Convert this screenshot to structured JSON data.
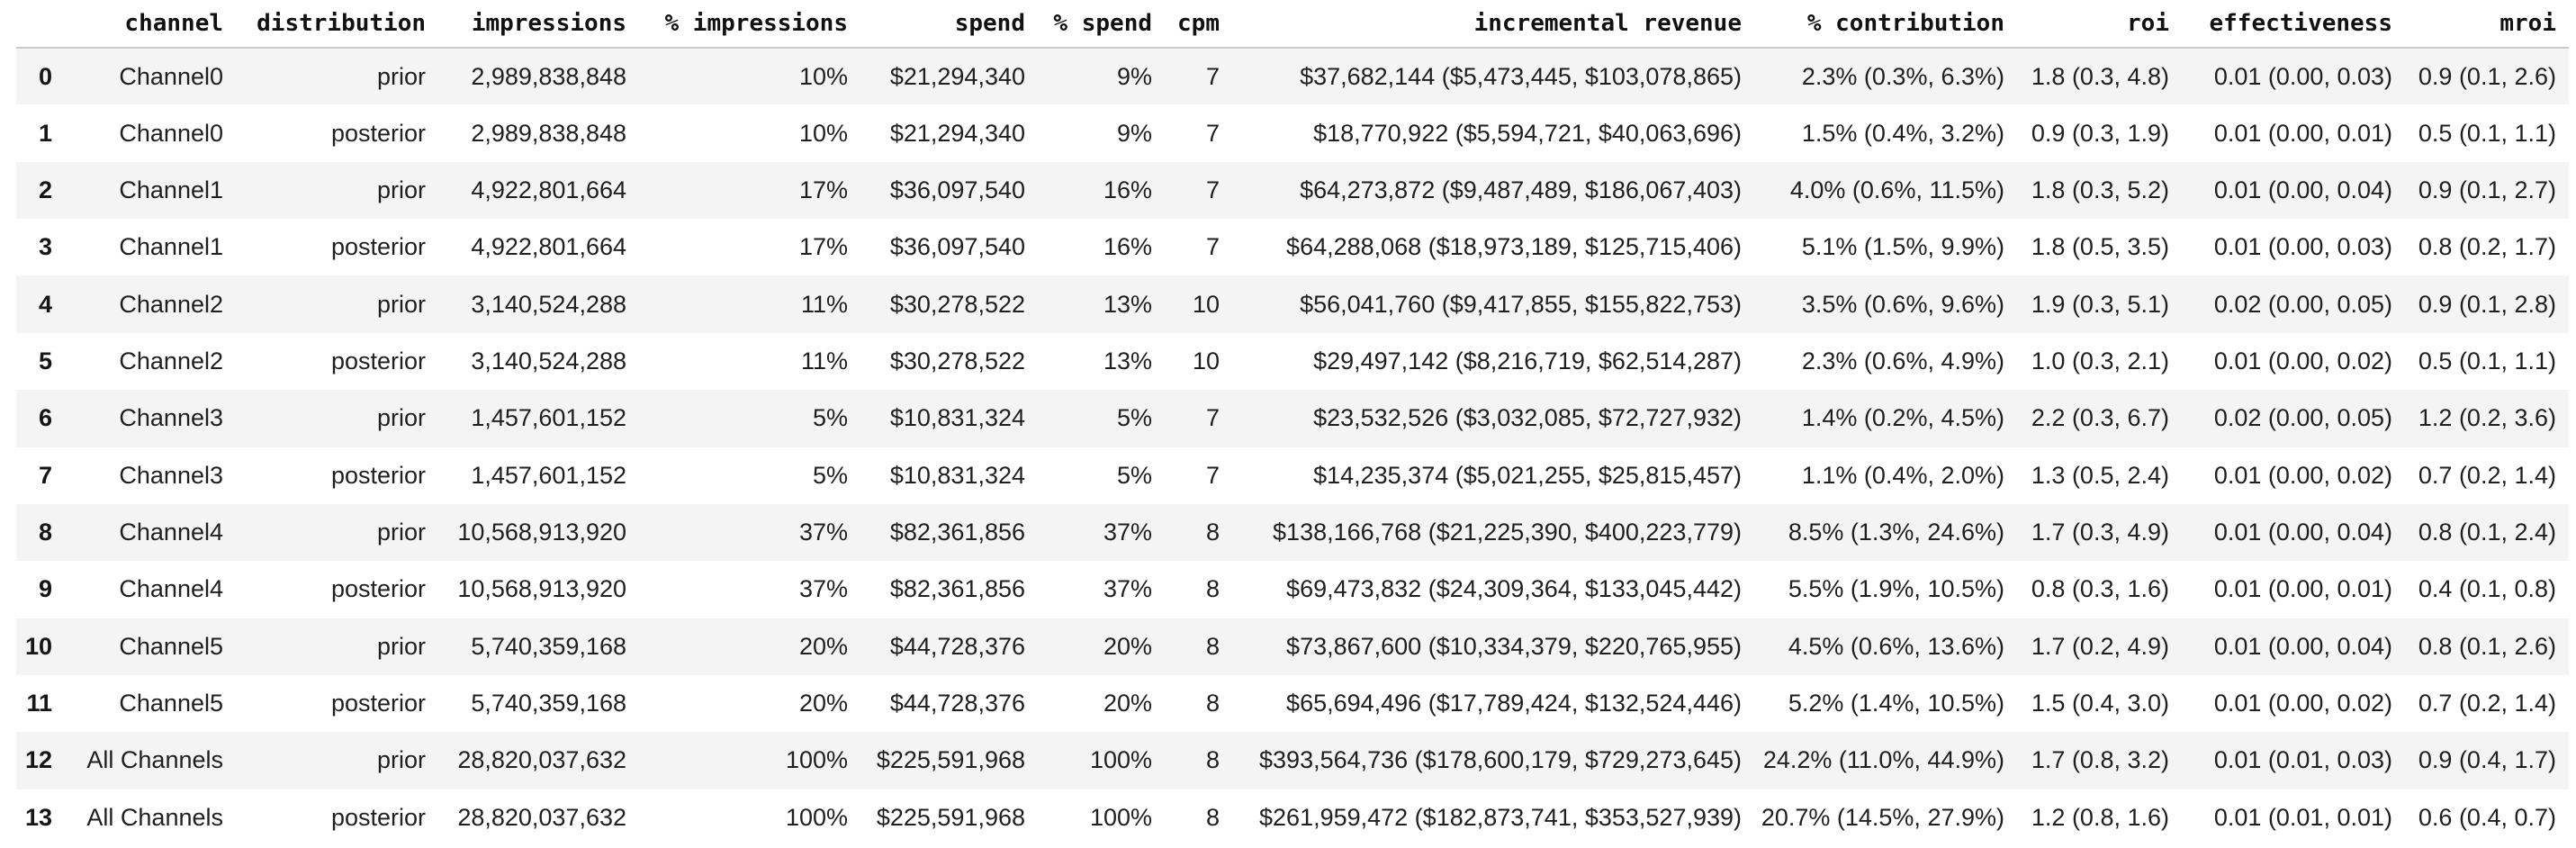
{
  "colors": {
    "background": "#ffffff",
    "row_stripe": "#f4f4f4",
    "header_rule": "#c9c9c9",
    "text": "#1f1f1f"
  },
  "table": {
    "index_header": "",
    "columns": [
      "channel",
      "distribution",
      "impressions",
      "% impressions",
      "spend",
      "% spend",
      "cpm",
      "incremental revenue",
      "% contribution",
      "roi",
      "effectiveness",
      "mroi"
    ],
    "rows": [
      {
        "index": "0",
        "cells": [
          "Channel0",
          "prior",
          "2,989,838,848",
          "10%",
          "$21,294,340",
          "9%",
          "7",
          "$37,682,144 ($5,473,445, $103,078,865)",
          "2.3% (0.3%, 6.3%)",
          "1.8 (0.3, 4.8)",
          "0.01 (0.00, 0.03)",
          "0.9 (0.1, 2.6)"
        ]
      },
      {
        "index": "1",
        "cells": [
          "Channel0",
          "posterior",
          "2,989,838,848",
          "10%",
          "$21,294,340",
          "9%",
          "7",
          "$18,770,922 ($5,594,721, $40,063,696)",
          "1.5% (0.4%, 3.2%)",
          "0.9 (0.3, 1.9)",
          "0.01 (0.00, 0.01)",
          "0.5 (0.1, 1.1)"
        ]
      },
      {
        "index": "2",
        "cells": [
          "Channel1",
          "prior",
          "4,922,801,664",
          "17%",
          "$36,097,540",
          "16%",
          "7",
          "$64,273,872 ($9,487,489, $186,067,403)",
          "4.0% (0.6%, 11.5%)",
          "1.8 (0.3, 5.2)",
          "0.01 (0.00, 0.04)",
          "0.9 (0.1, 2.7)"
        ]
      },
      {
        "index": "3",
        "cells": [
          "Channel1",
          "posterior",
          "4,922,801,664",
          "17%",
          "$36,097,540",
          "16%",
          "7",
          "$64,288,068 ($18,973,189, $125,715,406)",
          "5.1% (1.5%, 9.9%)",
          "1.8 (0.5, 3.5)",
          "0.01 (0.00, 0.03)",
          "0.8 (0.2, 1.7)"
        ]
      },
      {
        "index": "4",
        "cells": [
          "Channel2",
          "prior",
          "3,140,524,288",
          "11%",
          "$30,278,522",
          "13%",
          "10",
          "$56,041,760 ($9,417,855, $155,822,753)",
          "3.5% (0.6%, 9.6%)",
          "1.9 (0.3, 5.1)",
          "0.02 (0.00, 0.05)",
          "0.9 (0.1, 2.8)"
        ]
      },
      {
        "index": "5",
        "cells": [
          "Channel2",
          "posterior",
          "3,140,524,288",
          "11%",
          "$30,278,522",
          "13%",
          "10",
          "$29,497,142 ($8,216,719, $62,514,287)",
          "2.3% (0.6%, 4.9%)",
          "1.0 (0.3, 2.1)",
          "0.01 (0.00, 0.02)",
          "0.5 (0.1, 1.1)"
        ]
      },
      {
        "index": "6",
        "cells": [
          "Channel3",
          "prior",
          "1,457,601,152",
          "5%",
          "$10,831,324",
          "5%",
          "7",
          "$23,532,526 ($3,032,085, $72,727,932)",
          "1.4% (0.2%, 4.5%)",
          "2.2 (0.3, 6.7)",
          "0.02 (0.00, 0.05)",
          "1.2 (0.2, 3.6)"
        ]
      },
      {
        "index": "7",
        "cells": [
          "Channel3",
          "posterior",
          "1,457,601,152",
          "5%",
          "$10,831,324",
          "5%",
          "7",
          "$14,235,374 ($5,021,255, $25,815,457)",
          "1.1% (0.4%, 2.0%)",
          "1.3 (0.5, 2.4)",
          "0.01 (0.00, 0.02)",
          "0.7 (0.2, 1.4)"
        ]
      },
      {
        "index": "8",
        "cells": [
          "Channel4",
          "prior",
          "10,568,913,920",
          "37%",
          "$82,361,856",
          "37%",
          "8",
          "$138,166,768 ($21,225,390, $400,223,779)",
          "8.5% (1.3%, 24.6%)",
          "1.7 (0.3, 4.9)",
          "0.01 (0.00, 0.04)",
          "0.8 (0.1, 2.4)"
        ]
      },
      {
        "index": "9",
        "cells": [
          "Channel4",
          "posterior",
          "10,568,913,920",
          "37%",
          "$82,361,856",
          "37%",
          "8",
          "$69,473,832 ($24,309,364, $133,045,442)",
          "5.5% (1.9%, 10.5%)",
          "0.8 (0.3, 1.6)",
          "0.01 (0.00, 0.01)",
          "0.4 (0.1, 0.8)"
        ]
      },
      {
        "index": "10",
        "cells": [
          "Channel5",
          "prior",
          "5,740,359,168",
          "20%",
          "$44,728,376",
          "20%",
          "8",
          "$73,867,600 ($10,334,379, $220,765,955)",
          "4.5% (0.6%, 13.6%)",
          "1.7 (0.2, 4.9)",
          "0.01 (0.00, 0.04)",
          "0.8 (0.1, 2.6)"
        ]
      },
      {
        "index": "11",
        "cells": [
          "Channel5",
          "posterior",
          "5,740,359,168",
          "20%",
          "$44,728,376",
          "20%",
          "8",
          "$65,694,496 ($17,789,424, $132,524,446)",
          "5.2% (1.4%, 10.5%)",
          "1.5 (0.4, 3.0)",
          "0.01 (0.00, 0.02)",
          "0.7 (0.2, 1.4)"
        ]
      },
      {
        "index": "12",
        "cells": [
          "All Channels",
          "prior",
          "28,820,037,632",
          "100%",
          "$225,591,968",
          "100%",
          "8",
          "$393,564,736 ($178,600,179, $729,273,645)",
          "24.2% (11.0%, 44.9%)",
          "1.7 (0.8, 3.2)",
          "0.01 (0.01, 0.03)",
          "0.9 (0.4, 1.7)"
        ]
      },
      {
        "index": "13",
        "cells": [
          "All Channels",
          "posterior",
          "28,820,037,632",
          "100%",
          "$225,591,968",
          "100%",
          "8",
          "$261,959,472 ($182,873,741, $353,527,939)",
          "20.7% (14.5%, 27.9%)",
          "1.2 (0.8, 1.6)",
          "0.01 (0.01, 0.01)",
          "0.6 (0.4, 0.7)"
        ]
      }
    ]
  }
}
